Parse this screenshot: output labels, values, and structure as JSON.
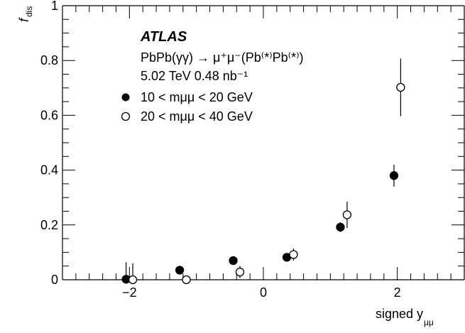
{
  "chart_data": {
    "type": "scatter",
    "xlabel_main": "signed y",
    "xlabel_sub": "μμ",
    "ylabel_main": "f",
    "ylabel_sub": "dis",
    "xlim": [
      -3.0,
      3.0
    ],
    "ylim": [
      0,
      1.0
    ],
    "x_ticks": [
      {
        "value": -2,
        "label": "−2"
      },
      {
        "value": 0,
        "label": "0"
      },
      {
        "value": 2,
        "label": "2"
      }
    ],
    "y_ticks": [
      {
        "value": 0,
        "label": "0"
      },
      {
        "value": 0.2,
        "label": "0.2"
      },
      {
        "value": 0.4,
        "label": "0.4"
      },
      {
        "value": 0.6,
        "label": "0.6"
      },
      {
        "value": 0.8,
        "label": "0.8"
      },
      {
        "value": 1.0,
        "label": "1"
      }
    ],
    "annotations": {
      "experiment": "ATLAS",
      "process": "PbPb(γγ) → μ⁺μ⁻(Pb⁽*⁾Pb⁽*⁾)",
      "lumi": "5.02 TeV 0.48 nb⁻¹"
    },
    "series": [
      {
        "name": "10 < mμμ < 20 GeV",
        "legend_label": "10 < mμμ < 20 GeV",
        "marker": "filled-circle",
        "color": "#000000",
        "points": [
          {
            "x": -2.05,
            "y": 0.002,
            "err": 0.062
          },
          {
            "x": -1.25,
            "y": 0.035,
            "err": 0.005
          },
          {
            "x": -0.45,
            "y": 0.07,
            "err": 0.008
          },
          {
            "x": 0.35,
            "y": 0.082,
            "err": 0.012
          },
          {
            "x": 1.15,
            "y": 0.192,
            "err": 0.018
          },
          {
            "x": 1.95,
            "y": 0.38,
            "err": 0.04
          }
        ]
      },
      {
        "name": "20 < mμμ < 40 GeV",
        "legend_label": "20 < mμμ < 40 GeV",
        "marker": "open-circle",
        "color": "#000000",
        "points": [
          {
            "x": -1.95,
            "y": 0.0,
            "err": 0.06
          },
          {
            "x": -1.15,
            "y": 0.0,
            "err": 0.005
          },
          {
            "x": -0.35,
            "y": 0.028,
            "err": 0.022
          },
          {
            "x": 0.45,
            "y": 0.092,
            "err": 0.022
          },
          {
            "x": 1.25,
            "y": 0.237,
            "err": 0.048
          },
          {
            "x": 2.05,
            "y": 0.702,
            "err": 0.105
          }
        ]
      }
    ]
  }
}
